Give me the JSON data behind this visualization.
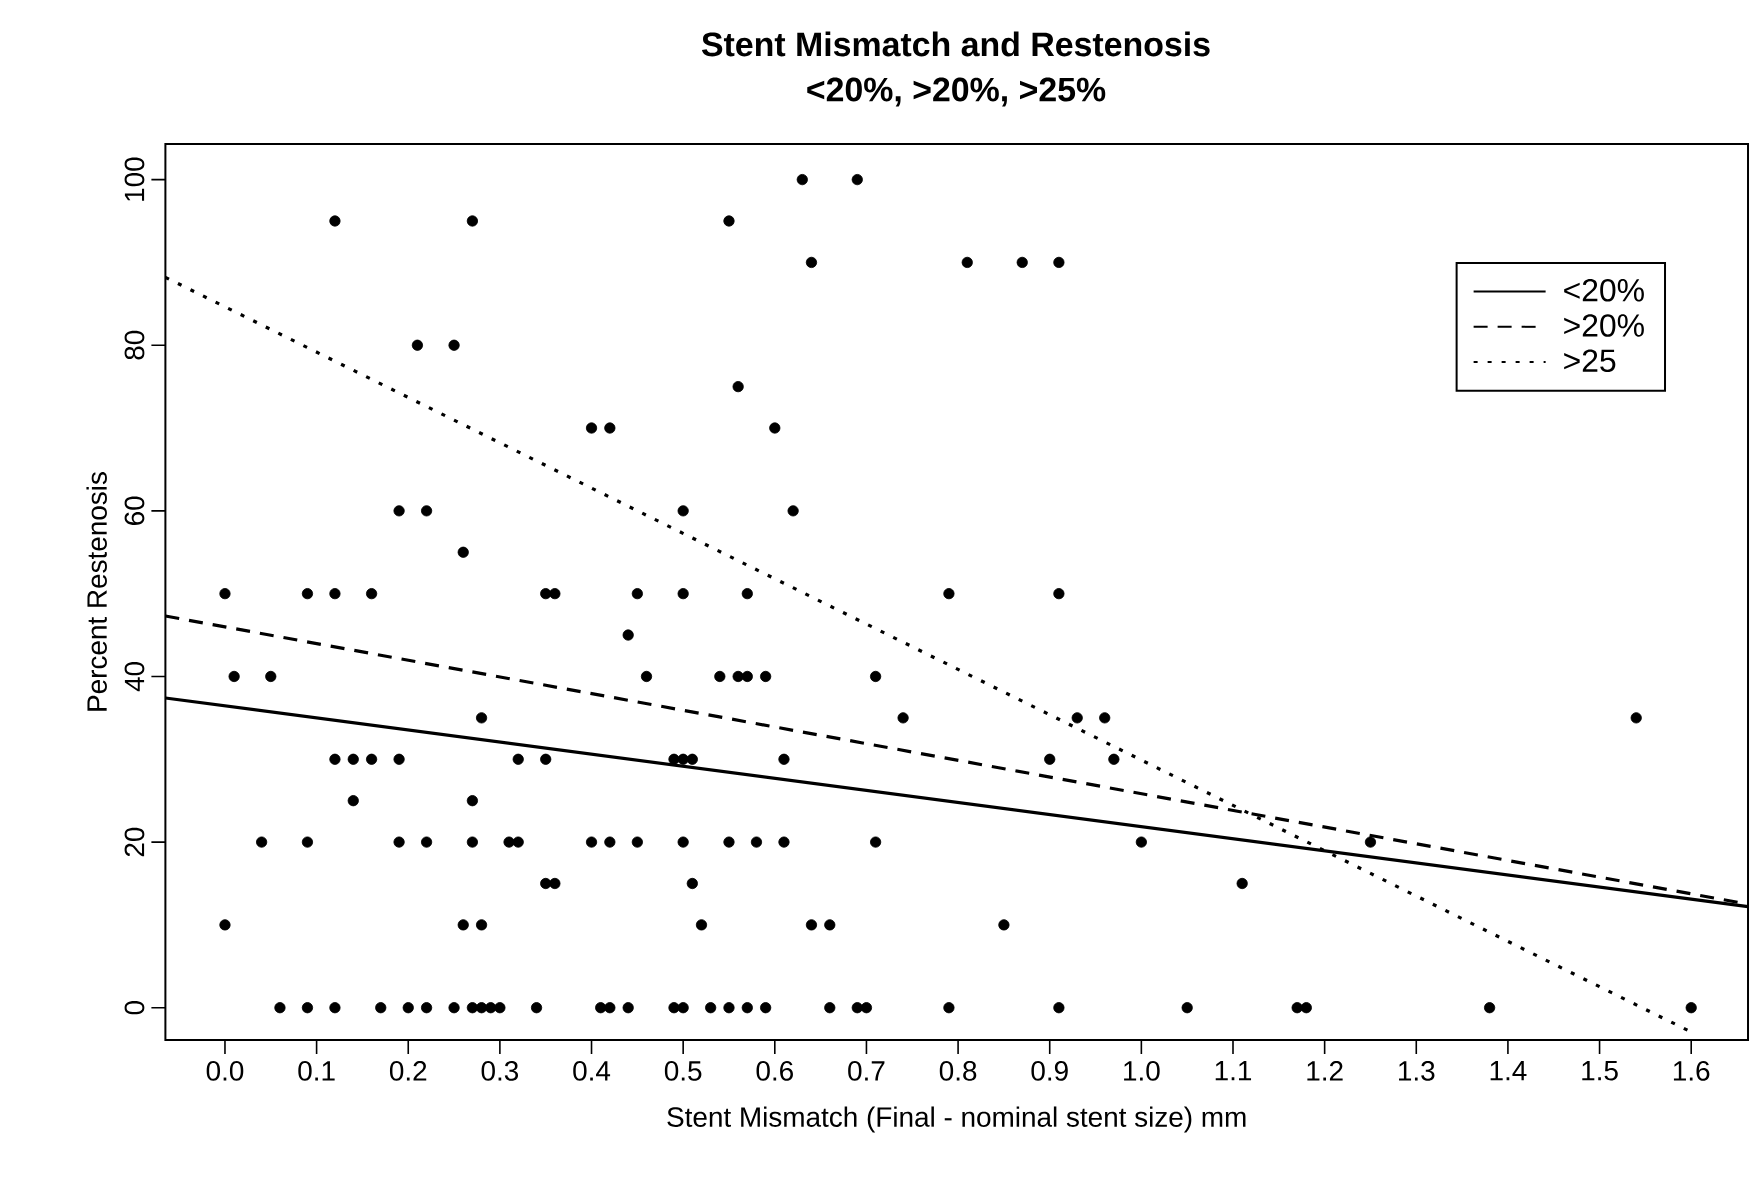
{
  "chart_data": {
    "type": "scatter",
    "title": "Stent Mismatch and Restenosis",
    "subtitle": "<20%, >20%, >25%",
    "xlabel": "Stent Mismatch (Final - nominal stent size) mm",
    "ylabel": "Percent Restenosis",
    "xlim": [
      -0.065,
      1.662
    ],
    "ylim": [
      -3.9,
      104.3
    ],
    "xticks": [
      {
        "value": 0,
        "label": "0.0"
      },
      {
        "value": 0.1,
        "label": "0.1"
      },
      {
        "value": 0.2,
        "label": "0.2"
      },
      {
        "value": 0.3,
        "label": "0.3"
      },
      {
        "value": 0.4,
        "label": "0.4"
      },
      {
        "value": 0.5,
        "label": "0.5"
      },
      {
        "value": 0.6,
        "label": "0.6"
      },
      {
        "value": 0.7,
        "label": "0.7"
      },
      {
        "value": 0.8,
        "label": "0.8"
      },
      {
        "value": 0.9,
        "label": "0.9"
      },
      {
        "value": 1.0,
        "label": "1.0"
      },
      {
        "value": 1.1,
        "label": "1.1"
      },
      {
        "value": 1.2,
        "label": "1.2"
      },
      {
        "value": 1.3,
        "label": "1.3"
      },
      {
        "value": 1.4,
        "label": "1.4"
      },
      {
        "value": 1.5,
        "label": "1.5"
      },
      {
        "value": 1.6,
        "label": "1.6"
      }
    ],
    "yticks": [
      0,
      20,
      40,
      60,
      80,
      100
    ],
    "legend": "top right",
    "series": [
      {
        "marker": "circle",
        "color": "#000000",
        "x": [
          0.06,
          0.09,
          0.12,
          0.17,
          0.2,
          0.22,
          0.25,
          0.27,
          0.28,
          0.29,
          0.3,
          0.34,
          0.41,
          0.42,
          0.44,
          0.49,
          0.5,
          0.53,
          0.55,
          0.57,
          0.59,
          0.66,
          0.69,
          0.7,
          0.79,
          0.91,
          1.05,
          1.17,
          1.18,
          1.38,
          1.6,
          0.0,
          0.26,
          0.28,
          0.52,
          0.64,
          0.66,
          0.85,
          0.35,
          0.36,
          0.51,
          1.11,
          0.04,
          0.09,
          0.19,
          0.22,
          0.27,
          0.31,
          0.32,
          0.4,
          0.42,
          0.45,
          0.5,
          0.55,
          0.58,
          0.61,
          0.71,
          1.0,
          1.25,
          0.14,
          0.27,
          0.12,
          0.14,
          0.16,
          0.19,
          0.32,
          0.35,
          0.49,
          0.5,
          0.51,
          0.61,
          0.9,
          0.97,
          0.28,
          0.74,
          0.93,
          0.96,
          1.54,
          0.01,
          0.05,
          0.46,
          0.54,
          0.56,
          0.57,
          0.59,
          0.71,
          0.44,
          0.0,
          0.09,
          0.12,
          0.16,
          0.35,
          0.36,
          0.45,
          0.5,
          0.57,
          0.79,
          0.91,
          0.26,
          0.19,
          0.22,
          0.5,
          0.62,
          0.4,
          0.42,
          0.6,
          0.56,
          0.21,
          0.25,
          0.64,
          0.81,
          0.87,
          0.91,
          0.12,
          0.27,
          0.55,
          0.63,
          0.69
        ],
        "values": [
          0,
          0,
          0,
          0,
          0,
          0,
          0,
          0,
          0,
          0,
          0,
          0,
          0,
          0,
          0,
          0,
          0,
          0,
          0,
          0,
          0,
          0,
          0,
          0,
          0,
          0,
          0,
          0,
          0,
          0,
          0,
          10,
          10,
          10,
          10,
          10,
          10,
          10,
          15,
          15,
          15,
          15,
          20,
          20,
          20,
          20,
          20,
          20,
          20,
          20,
          20,
          20,
          20,
          20,
          20,
          20,
          20,
          20,
          20,
          25,
          25,
          30,
          30,
          30,
          30,
          30,
          30,
          30,
          30,
          30,
          30,
          30,
          30,
          35,
          35,
          35,
          35,
          35,
          40,
          40,
          40,
          40,
          40,
          40,
          40,
          40,
          45,
          50,
          50,
          50,
          50,
          50,
          50,
          50,
          50,
          50,
          50,
          50,
          55,
          60,
          60,
          60,
          60,
          70,
          70,
          70,
          75,
          80,
          80,
          90,
          90,
          90,
          90,
          95,
          95,
          95,
          100,
          100
        ]
      },
      {
        "type": "line",
        "name": "<20%",
        "line_style": "solid",
        "marker": "none",
        "color": "#000000",
        "x": [
          -0.065,
          1.662
        ],
        "values": [
          37.4,
          12.2
        ]
      },
      {
        "type": "line",
        "name": ">20%",
        "line_style": "dashed",
        "marker": "none",
        "color": "#000000",
        "x": [
          -0.065,
          1.662
        ],
        "values": [
          47.3,
          12.5
        ]
      },
      {
        "type": "line",
        "name": ">25",
        "line_style": "dotted",
        "marker": "none",
        "color": "#000000",
        "x": [
          -0.065,
          1.603
        ],
        "values": [
          88.2,
          -3.1
        ]
      }
    ]
  }
}
